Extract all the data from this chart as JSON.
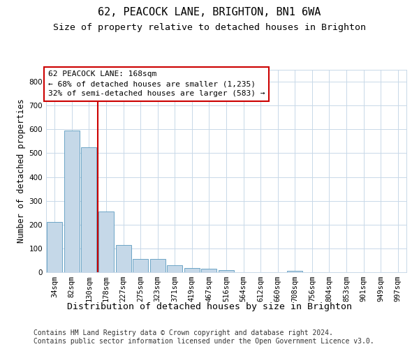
{
  "title": "62, PEACOCK LANE, BRIGHTON, BN1 6WA",
  "subtitle": "Size of property relative to detached houses in Brighton",
  "xlabel": "Distribution of detached houses by size in Brighton",
  "ylabel": "Number of detached properties",
  "bar_labels": [
    "34sqm",
    "82sqm",
    "130sqm",
    "178sqm",
    "227sqm",
    "275sqm",
    "323sqm",
    "371sqm",
    "419sqm",
    "467sqm",
    "516sqm",
    "564sqm",
    "612sqm",
    "660sqm",
    "708sqm",
    "756sqm",
    "804sqm",
    "853sqm",
    "901sqm",
    "949sqm",
    "997sqm"
  ],
  "bar_values": [
    210,
    595,
    525,
    255,
    115,
    55,
    55,
    30,
    17,
    15,
    10,
    0,
    0,
    0,
    7,
    0,
    0,
    0,
    0,
    0,
    0
  ],
  "bar_color": "#c5d8e8",
  "bar_edge_color": "#5a9abf",
  "ylim": [
    0,
    850
  ],
  "yticks": [
    0,
    100,
    200,
    300,
    400,
    500,
    600,
    700,
    800
  ],
  "property_line_color": "#cc0000",
  "annotation_text": "62 PEACOCK LANE: 168sqm\n← 68% of detached houses are smaller (1,235)\n32% of semi-detached houses are larger (583) →",
  "annotation_box_color": "#cc0000",
  "footer_text": "Contains HM Land Registry data © Crown copyright and database right 2024.\nContains public sector information licensed under the Open Government Licence v3.0.",
  "bg_color": "#ffffff",
  "grid_color": "#c8d8e8",
  "title_fontsize": 11,
  "subtitle_fontsize": 9.5,
  "xlabel_fontsize": 9.5,
  "ylabel_fontsize": 8.5,
  "tick_fontsize": 7.5,
  "annotation_fontsize": 8,
  "footer_fontsize": 7
}
